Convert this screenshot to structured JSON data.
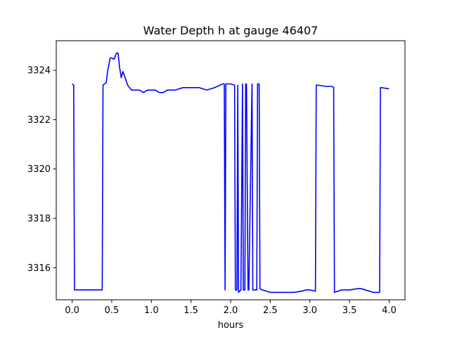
{
  "chart_data": {
    "type": "line",
    "title": "Water Depth h at gauge 46407",
    "xlabel": "hours",
    "ylabel": "",
    "xlim": [
      -0.2,
      4.2
    ],
    "ylim": [
      3314.7,
      3325.2
    ],
    "xticks": [
      0.0,
      0.5,
      1.0,
      1.5,
      2.0,
      2.5,
      3.0,
      3.5,
      4.0
    ],
    "xtick_labels": [
      "0.0",
      "0.5",
      "1.0",
      "1.5",
      "2.0",
      "2.5",
      "3.0",
      "3.5",
      "4.0"
    ],
    "yticks": [
      3316,
      3318,
      3320,
      3322,
      3324
    ],
    "ytick_labels": [
      "3316",
      "3318",
      "3320",
      "3322",
      "3324"
    ],
    "grid": false,
    "series": [
      {
        "color": "#0000ff",
        "x": [
          0.0,
          0.02,
          0.03,
          0.2,
          0.35,
          0.38,
          0.39,
          0.43,
          0.45,
          0.48,
          0.5,
          0.53,
          0.56,
          0.58,
          0.6,
          0.62,
          0.64,
          0.67,
          0.7,
          0.75,
          0.8,
          0.85,
          0.9,
          0.95,
          1.0,
          1.05,
          1.1,
          1.15,
          1.2,
          1.3,
          1.4,
          1.45,
          1.5,
          1.6,
          1.7,
          1.8,
          1.9,
          1.92,
          1.93,
          1.94,
          2.0,
          2.05,
          2.06,
          2.08,
          2.09,
          2.1,
          2.13,
          2.15,
          2.16,
          2.18,
          2.19,
          2.2,
          2.22,
          2.23,
          2.27,
          2.28,
          2.33,
          2.34,
          2.36,
          2.37,
          2.4,
          2.5,
          2.6,
          2.7,
          2.8,
          2.9,
          2.95,
          3.0,
          3.07,
          3.08,
          3.1,
          3.2,
          3.28,
          3.3,
          3.31,
          3.4,
          3.5,
          3.6,
          3.65,
          3.7,
          3.8,
          3.88,
          3.89,
          3.9,
          4.0
        ],
        "y": [
          3323.45,
          3323.4,
          3315.1,
          3315.1,
          3315.1,
          3315.1,
          3323.4,
          3323.5,
          3324.0,
          3324.5,
          3324.5,
          3324.45,
          3324.7,
          3324.7,
          3324.1,
          3323.7,
          3323.95,
          3323.7,
          3323.4,
          3323.2,
          3323.2,
          3323.2,
          3323.1,
          3323.2,
          3323.2,
          3323.2,
          3323.1,
          3323.1,
          3323.2,
          3323.2,
          3323.3,
          3323.3,
          3323.3,
          3323.3,
          3323.2,
          3323.3,
          3323.45,
          3323.45,
          3315.1,
          3323.45,
          3323.45,
          3323.4,
          3315.1,
          3315.1,
          3323.4,
          3315.0,
          3315.1,
          3323.45,
          3315.1,
          3315.1,
          3323.45,
          3323.45,
          3315.1,
          3315.1,
          3323.45,
          3315.1,
          3315.1,
          3323.45,
          3323.45,
          3315.15,
          3315.1,
          3315.0,
          3315.0,
          3315.0,
          3315.0,
          3315.05,
          3315.1,
          3315.1,
          3315.05,
          3323.4,
          3323.4,
          3323.35,
          3323.35,
          3323.3,
          3315.0,
          3315.1,
          3315.1,
          3315.15,
          3315.15,
          3315.1,
          3315.0,
          3315.0,
          3323.3,
          3323.3,
          3323.25
        ]
      }
    ]
  }
}
